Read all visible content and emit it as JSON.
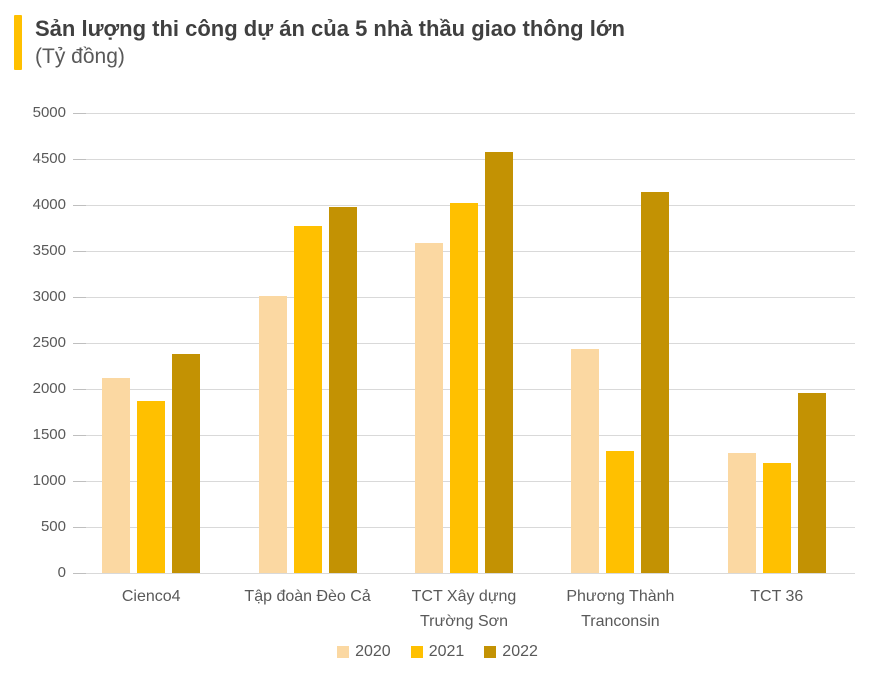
{
  "header": {
    "title": "Sản lượng thi công dự án của 5 nhà thầu giao thông lớn",
    "subtitle": "(Tỷ đồng)"
  },
  "colors": {
    "accent_bar": "#FFC000",
    "title_text": "#404040",
    "subtitle_text": "#595959",
    "axis_text": "#595959",
    "gridline": "#D9D9D9",
    "tick_stub": "#BFBFBF",
    "background": "#FFFFFF",
    "series_2020": "#FBD8A2",
    "series_2021": "#FFC000",
    "series_2022": "#C39203"
  },
  "chart_data": {
    "type": "bar",
    "title": "Sản lượng thi công dự án của 5 nhà thầu giao thông lớn",
    "subtitle": "(Tỷ đồng)",
    "xlabel": "",
    "ylabel": "Tỷ đồng",
    "ylim": [
      0,
      5000
    ],
    "ytick_step": 500,
    "yticks": [
      "0",
      "500",
      "1000",
      "1500",
      "2000",
      "2500",
      "3000",
      "3500",
      "4000",
      "4500",
      "5000"
    ],
    "grid": true,
    "legend_position": "bottom",
    "categories": [
      "Cienco4",
      "Tập đoàn Đèo Cả",
      "TCT Xây dựng Trường Sơn",
      "Phương Thành Tranconsin",
      "TCT 36"
    ],
    "category_label_lines": [
      [
        "Cienco4"
      ],
      [
        "Tập đoàn Đèo Cả"
      ],
      [
        "TCT Xây dựng",
        "Trường Sơn"
      ],
      [
        "Phương Thành",
        "Tranconsin"
      ],
      [
        "TCT 36"
      ]
    ],
    "series": [
      {
        "name": "2020",
        "color_key": "series_2020",
        "values": [
          2120,
          3010,
          3590,
          2440,
          1300
        ]
      },
      {
        "name": "2021",
        "color_key": "series_2021",
        "values": [
          1870,
          3770,
          4020,
          1330,
          1200
        ]
      },
      {
        "name": "2022",
        "color_key": "series_2022",
        "values": [
          2380,
          3980,
          4580,
          4140,
          1960
        ]
      }
    ]
  }
}
